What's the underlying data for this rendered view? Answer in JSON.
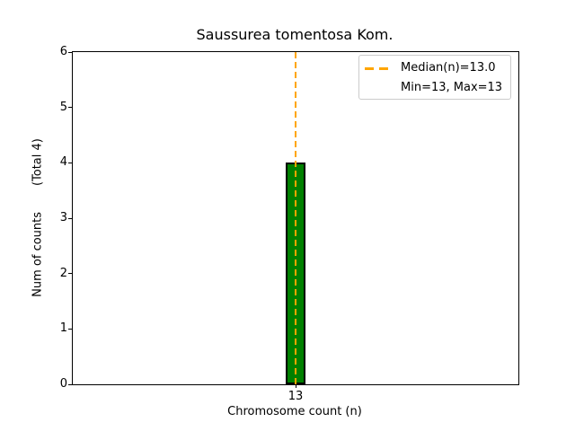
{
  "chart_data": {
    "type": "bar",
    "title": "Saussurea tomentosa Kom.",
    "xlabel": "Chromosome count (n)",
    "ylabel": "Num of counts       (Total 4)",
    "categories": [
      "13"
    ],
    "values": [
      4
    ],
    "total_counts": 4,
    "ylim": [
      0,
      6
    ],
    "yticks": [
      0,
      1,
      2,
      3,
      4,
      5,
      6
    ],
    "xticks": [
      "13"
    ],
    "grid": false,
    "median_line": {
      "x": 13,
      "value_label": "Median(n)=13.0"
    },
    "legend": {
      "position": "upper right",
      "entries": [
        "Median(n)=13.0",
        "Min=13, Max=13"
      ]
    },
    "colors": {
      "bar_fill": "#008000",
      "bar_edge": "#000000",
      "median_line": "#FFA500",
      "axes": "#000000",
      "background": "#ffffff"
    }
  }
}
